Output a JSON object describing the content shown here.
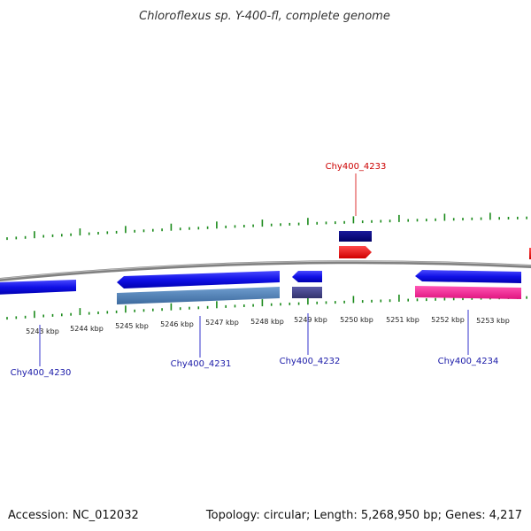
{
  "title": "Chloroflexus sp. Y-400-fl, complete genome",
  "footer": {
    "accession": "Accession: NC_012032",
    "summary": "Topology: circular; Length: 5,268,950 bp; Genes: 4,217"
  },
  "colors": {
    "backbone": "#8c8c8c",
    "tick": "#1a8a1a",
    "label_red": "#cc0000",
    "label_blue": "#1a1aa8",
    "label_line_red": "#dd3333",
    "label_line_blue": "#3333cc"
  },
  "scale_labels": [
    "5243 kbp",
    "5244 kbp",
    "5245 kbp",
    "5246 kbp",
    "5247 kbp",
    "5248 kbp",
    "5249 kbp",
    "5250 kbp",
    "5251 kbp",
    "5252 kbp",
    "5253 kbp"
  ],
  "gene_labels": [
    {
      "text": "Chy400_4233",
      "color": "red"
    },
    {
      "text": "Chy400_4230",
      "color": "blue"
    },
    {
      "text": "Chy400_4231",
      "color": "blue"
    },
    {
      "text": "Chy400_4232",
      "color": "blue"
    },
    {
      "text": "Chy400_4234",
      "color": "blue"
    }
  ]
}
